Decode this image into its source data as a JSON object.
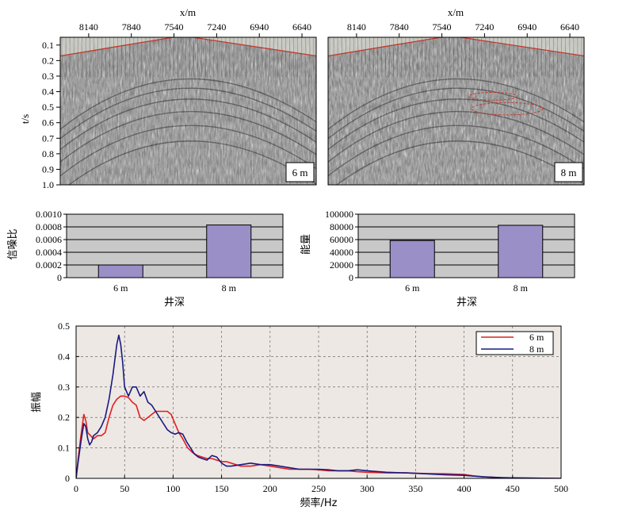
{
  "chart_data": [
    {
      "type": "heatmap",
      "panel": "seismic-left",
      "xlabel": "x/m",
      "x_ticks": [
        "8140",
        "7840",
        "7540",
        "7240",
        "6940",
        "6640"
      ],
      "x_tick_values": [
        8140,
        7840,
        7540,
        7240,
        6940,
        6640
      ],
      "xlim": [
        8340,
        6540
      ],
      "ylabel": "t/s",
      "y_ticks": [
        "0.1",
        "0.2",
        "0.3",
        "0.4",
        "0.5",
        "0.6",
        "0.7",
        "0.8",
        "0.9",
        "1.0"
      ],
      "ylim": [
        0.05,
        1.0
      ],
      "annotation": "6 m",
      "first_break_line": {
        "x": [
          8340,
          7480,
          6540
        ],
        "t": [
          0.17,
          0.04,
          0.17
        ]
      },
      "colors": {
        "line": "#c0392b"
      }
    },
    {
      "type": "heatmap",
      "panel": "seismic-right",
      "xlabel": "x/m",
      "x_ticks": [
        "8140",
        "7840",
        "7540",
        "7240",
        "6940",
        "6640"
      ],
      "x_tick_values": [
        8140,
        7840,
        7540,
        7240,
        6940,
        6640
      ],
      "xlim": [
        8340,
        6540
      ],
      "ylabel": "",
      "y_ticks": [],
      "ylim": [
        0.05,
        1.0
      ],
      "annotation": "8 m",
      "first_break_line": {
        "x": [
          8340,
          7480,
          6540
        ],
        "t": [
          0.17,
          0.04,
          0.17
        ]
      },
      "highlight_ellipses": [
        {
          "x_center": 7180,
          "t_center": 0.43,
          "x_halfwidth": 170,
          "t_halfwidth": 0.025
        },
        {
          "x_center": 7080,
          "t_center": 0.51,
          "x_halfwidth": 250,
          "t_halfwidth": 0.04
        }
      ],
      "colors": {
        "line": "#c0392b"
      }
    },
    {
      "type": "bar",
      "panel": "snr-bar",
      "categories": [
        "6 m",
        "8 m"
      ],
      "values": [
        0.0002,
        0.00083
      ],
      "y_ticks": [
        "0",
        "0.0002",
        "0.0004",
        "0.0006",
        "0.0008",
        "0.0010"
      ],
      "ylim": [
        0,
        0.001
      ],
      "xlabel": "井深",
      "ylabel": "信噪比",
      "colors": {
        "bar": "#9b8fc8",
        "plot_bg": "#c8c8c8"
      }
    },
    {
      "type": "bar",
      "panel": "energy-bar",
      "categories": [
        "6 m",
        "8 m"
      ],
      "values": [
        58500,
        82500
      ],
      "y_ticks": [
        "0",
        "20000",
        "40000",
        "60000",
        "80000",
        "100000"
      ],
      "ylim": [
        0,
        100000
      ],
      "xlabel": "井深",
      "ylabel": "能量",
      "colors": {
        "bar": "#9b8fc8",
        "plot_bg": "#c8c8c8"
      }
    },
    {
      "type": "line",
      "panel": "spectrum",
      "xlabel": "频率/Hz",
      "ylabel": "振幅",
      "xlim": [
        0,
        500
      ],
      "ylim": [
        0,
        0.5
      ],
      "x_ticks": [
        "0",
        "50",
        "100",
        "150",
        "200",
        "250",
        "300",
        "350",
        "400",
        "450",
        "500"
      ],
      "y_ticks": [
        "0",
        "0.1",
        "0.2",
        "0.3",
        "0.4",
        "0.5"
      ],
      "grid": true,
      "legend_position": "top-right",
      "series": [
        {
          "name": "6 m",
          "color": "#e02020",
          "points": [
            [
              0,
              0
            ],
            [
              2,
              0.06
            ],
            [
              5,
              0.14
            ],
            [
              8,
              0.21
            ],
            [
              10,
              0.19
            ],
            [
              12,
              0.15
            ],
            [
              15,
              0.14
            ],
            [
              18,
              0.13
            ],
            [
              22,
              0.14
            ],
            [
              26,
              0.14
            ],
            [
              30,
              0.15
            ],
            [
              34,
              0.2
            ],
            [
              38,
              0.24
            ],
            [
              42,
              0.26
            ],
            [
              46,
              0.27
            ],
            [
              50,
              0.27
            ],
            [
              54,
              0.265
            ],
            [
              58,
              0.25
            ],
            [
              62,
              0.24
            ],
            [
              66,
              0.2
            ],
            [
              70,
              0.19
            ],
            [
              74,
              0.2
            ],
            [
              78,
              0.21
            ],
            [
              82,
              0.22
            ],
            [
              86,
              0.22
            ],
            [
              90,
              0.22
            ],
            [
              94,
              0.22
            ],
            [
              98,
              0.21
            ],
            [
              102,
              0.18
            ],
            [
              106,
              0.15
            ],
            [
              110,
              0.13
            ],
            [
              115,
              0.1
            ],
            [
              120,
              0.085
            ],
            [
              125,
              0.075
            ],
            [
              130,
              0.07
            ],
            [
              135,
              0.065
            ],
            [
              140,
              0.065
            ],
            [
              145,
              0.06
            ],
            [
              150,
              0.055
            ],
            [
              155,
              0.055
            ],
            [
              160,
              0.05
            ],
            [
              170,
              0.04
            ],
            [
              180,
              0.04
            ],
            [
              190,
              0.045
            ],
            [
              200,
              0.04
            ],
            [
              210,
              0.035
            ],
            [
              220,
              0.03
            ],
            [
              230,
              0.03
            ],
            [
              240,
              0.03
            ],
            [
              250,
              0.028
            ],
            [
              260,
              0.025
            ],
            [
              270,
              0.025
            ],
            [
              280,
              0.025
            ],
            [
              290,
              0.022
            ],
            [
              300,
              0.02
            ],
            [
              320,
              0.018
            ],
            [
              340,
              0.018
            ],
            [
              360,
              0.016
            ],
            [
              380,
              0.015
            ],
            [
              400,
              0.013
            ],
            [
              410,
              0.008
            ],
            [
              420,
              0.005
            ],
            [
              440,
              0.002
            ],
            [
              460,
              0.001
            ],
            [
              500,
              0.0
            ]
          ]
        },
        {
          "name": "8 m",
          "color": "#1a1a80",
          "points": [
            [
              0,
              0
            ],
            [
              2,
              0.05
            ],
            [
              5,
              0.12
            ],
            [
              8,
              0.18
            ],
            [
              10,
              0.17
            ],
            [
              12,
              0.13
            ],
            [
              14,
              0.11
            ],
            [
              16,
              0.12
            ],
            [
              18,
              0.14
            ],
            [
              22,
              0.15
            ],
            [
              26,
              0.17
            ],
            [
              30,
              0.2
            ],
            [
              34,
              0.26
            ],
            [
              38,
              0.34
            ],
            [
              42,
              0.44
            ],
            [
              44,
              0.47
            ],
            [
              46,
              0.44
            ],
            [
              48,
              0.38
            ],
            [
              50,
              0.3
            ],
            [
              54,
              0.27
            ],
            [
              58,
              0.3
            ],
            [
              62,
              0.3
            ],
            [
              66,
              0.27
            ],
            [
              70,
              0.285
            ],
            [
              74,
              0.25
            ],
            [
              78,
              0.24
            ],
            [
              82,
              0.22
            ],
            [
              86,
              0.2
            ],
            [
              90,
              0.18
            ],
            [
              94,
              0.16
            ],
            [
              98,
              0.15
            ],
            [
              102,
              0.145
            ],
            [
              106,
              0.15
            ],
            [
              110,
              0.145
            ],
            [
              114,
              0.12
            ],
            [
              118,
              0.1
            ],
            [
              122,
              0.08
            ],
            [
              126,
              0.07
            ],
            [
              130,
              0.065
            ],
            [
              135,
              0.06
            ],
            [
              140,
              0.075
            ],
            [
              145,
              0.07
            ],
            [
              150,
              0.05
            ],
            [
              155,
              0.04
            ],
            [
              160,
              0.04
            ],
            [
              170,
              0.045
            ],
            [
              180,
              0.05
            ],
            [
              190,
              0.045
            ],
            [
              200,
              0.045
            ],
            [
              210,
              0.04
            ],
            [
              220,
              0.035
            ],
            [
              230,
              0.03
            ],
            [
              240,
              0.03
            ],
            [
              250,
              0.03
            ],
            [
              260,
              0.028
            ],
            [
              270,
              0.025
            ],
            [
              280,
              0.025
            ],
            [
              290,
              0.028
            ],
            [
              300,
              0.025
            ],
            [
              320,
              0.02
            ],
            [
              340,
              0.018
            ],
            [
              360,
              0.015
            ],
            [
              380,
              0.012
            ],
            [
              400,
              0.01
            ],
            [
              420,
              0.005
            ],
            [
              440,
              0.002
            ],
            [
              460,
              0.001
            ],
            [
              500,
              0.0
            ]
          ]
        }
      ],
      "colors": {
        "plot_bg": "#ede8e4",
        "grid": "#555555"
      }
    }
  ]
}
